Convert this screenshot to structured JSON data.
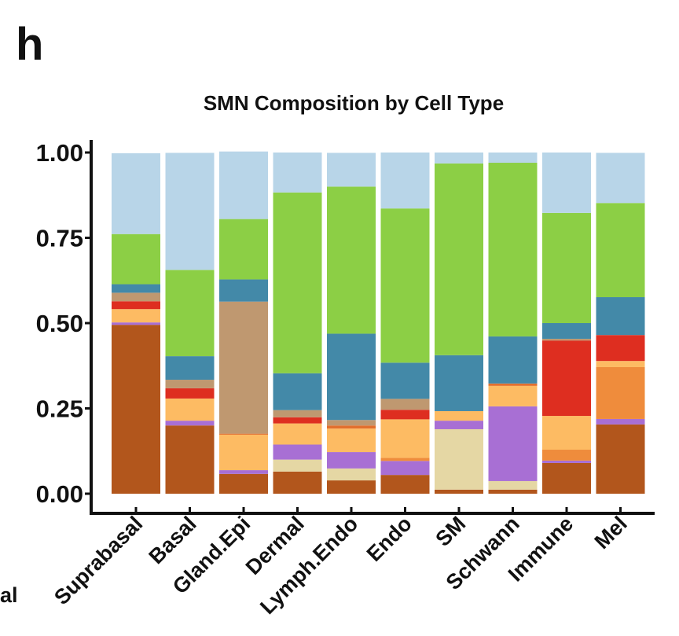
{
  "panel_label": "h",
  "side_fragment": "al",
  "chart_data": {
    "type": "bar",
    "stacked": true,
    "title": "SMN Composition by Cell Type",
    "xlabel": "",
    "ylabel": "",
    "ylim": [
      0,
      1
    ],
    "yticks": [
      "0.00",
      "0.25",
      "0.50",
      "0.75",
      "1.00"
    ],
    "ytick_values": [
      0,
      0.25,
      0.5,
      0.75,
      1.0
    ],
    "grid": false,
    "legend": "none",
    "categories": [
      "Suprabasal",
      "Basal",
      "Gland.Epi",
      "Dermal",
      "Lymph.Endo",
      "Endo",
      "SM",
      "Schwann",
      "Immune",
      "Mel"
    ],
    "series": [
      {
        "name": "brown",
        "color": "#b2561c",
        "values": [
          0.495,
          0.2,
          0.058,
          0.065,
          0.039,
          0.055,
          0.012,
          0.012,
          0.09,
          0.203
        ]
      },
      {
        "name": "beige",
        "color": "#e5d7a4",
        "values": [
          0.0,
          0.0,
          0.0,
          0.035,
          0.035,
          0.0,
          0.177,
          0.025,
          0.0,
          0.0
        ]
      },
      {
        "name": "purple",
        "color": "#a86fd4",
        "values": [
          0.007,
          0.014,
          0.011,
          0.044,
          0.048,
          0.041,
          0.025,
          0.219,
          0.007,
          0.016
        ]
      },
      {
        "name": "orange",
        "color": "#ef8c3c",
        "values": [
          0.0,
          0.0,
          0.0,
          0.0,
          0.0,
          0.009,
          0.0,
          0.0,
          0.032,
          0.152
        ]
      },
      {
        "name": "light-orange",
        "color": "#fdbb63",
        "values": [
          0.039,
          0.065,
          0.104,
          0.062,
          0.069,
          0.113,
          0.028,
          0.06,
          0.099,
          0.018
        ]
      },
      {
        "name": "dark-orange",
        "color": "#e2702e",
        "values": [
          0.0,
          0.0,
          0.003,
          0.0,
          0.009,
          0.0,
          0.0,
          0.007,
          0.0,
          0.0
        ]
      },
      {
        "name": "red",
        "color": "#de2e20",
        "values": [
          0.023,
          0.03,
          0.0,
          0.018,
          0.0,
          0.028,
          0.0,
          0.0,
          0.221,
          0.076
        ]
      },
      {
        "name": "tan",
        "color": "#bf9870",
        "values": [
          0.025,
          0.025,
          0.387,
          0.021,
          0.016,
          0.032,
          0.0,
          0.0,
          0.005,
          0.0
        ]
      },
      {
        "name": "blue",
        "color": "#4389a8",
        "values": [
          0.025,
          0.069,
          0.065,
          0.108,
          0.253,
          0.106,
          0.164,
          0.138,
          0.046,
          0.111
        ]
      },
      {
        "name": "green",
        "color": "#8ccf45",
        "values": [
          0.147,
          0.253,
          0.177,
          0.53,
          0.431,
          0.452,
          0.562,
          0.509,
          0.323,
          0.276
        ]
      },
      {
        "name": "light-blue",
        "color": "#b8d5e8",
        "values": [
          0.237,
          0.343,
          0.198,
          0.117,
          0.099,
          0.164,
          0.032,
          0.03,
          0.177,
          0.147
        ]
      }
    ]
  }
}
